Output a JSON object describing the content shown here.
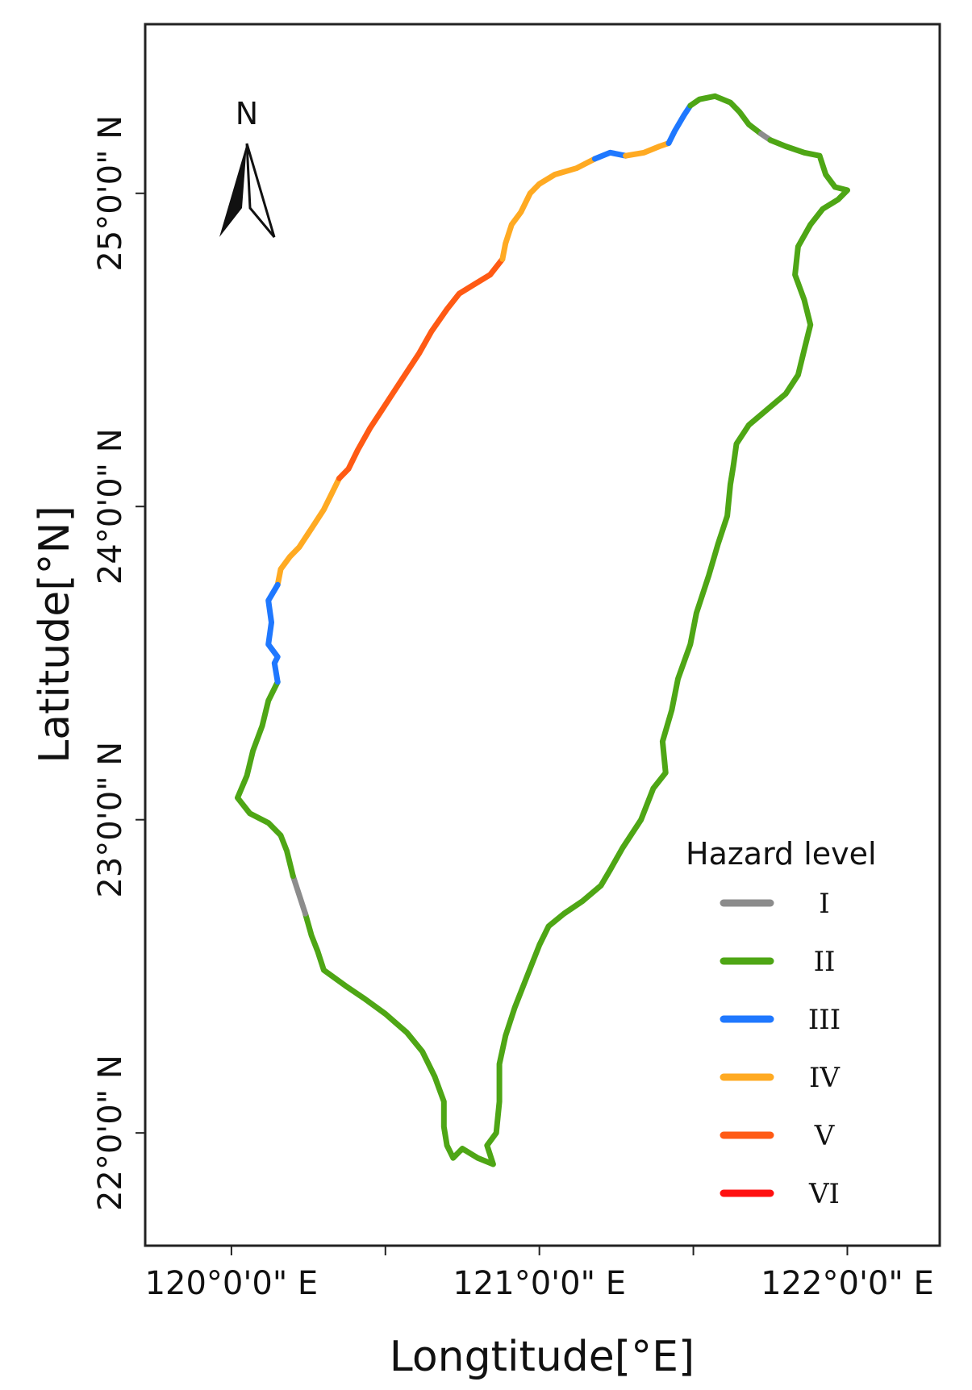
{
  "map": {
    "x_axis": {
      "title": "Longtitude[°E]",
      "ticks": [
        {
          "value": 120.0,
          "label": "120°0'0\" E"
        },
        {
          "value": 120.5,
          "label": ""
        },
        {
          "value": 121.0,
          "label": "121°0'0\" E"
        },
        {
          "value": 121.5,
          "label": ""
        },
        {
          "value": 122.0,
          "label": "122°0'0\" E"
        }
      ],
      "range": [
        119.72,
        122.3
      ]
    },
    "y_axis": {
      "title": "Latitude[°N]",
      "ticks": [
        {
          "value": 22.0,
          "label": "22°0'0\" N"
        },
        {
          "value": 23.0,
          "label": "23°0'0\" N"
        },
        {
          "value": 24.0,
          "label": "24°0'0\" N"
        },
        {
          "value": 25.0,
          "label": "25°0'0\" N"
        }
      ],
      "range": [
        21.64,
        25.54
      ]
    },
    "north_arrow": {
      "label": "N"
    },
    "legend": {
      "title": "Hazard level",
      "items": [
        {
          "label": "I",
          "color": "#8c8c8c"
        },
        {
          "label": "II",
          "color": "#4ea615"
        },
        {
          "label": "III",
          "color": "#1f78ff"
        },
        {
          "label": "IV",
          "color": "#ffaa22"
        },
        {
          "label": "V",
          "color": "#ff5a14"
        },
        {
          "label": "VI",
          "color": "#ff1010"
        }
      ]
    },
    "coast_segments": [
      {
        "level": "IV",
        "points": [
          [
            120.15,
            23.75
          ],
          [
            120.16,
            23.8
          ],
          [
            120.19,
            23.84
          ],
          [
            120.22,
            23.87
          ],
          [
            120.26,
            23.93
          ],
          [
            120.3,
            23.99
          ],
          [
            120.33,
            24.05
          ],
          [
            120.35,
            24.09
          ]
        ]
      },
      {
        "level": "V",
        "points": [
          [
            120.35,
            24.09
          ],
          [
            120.38,
            24.12
          ],
          [
            120.41,
            24.18
          ],
          [
            120.45,
            24.25
          ],
          [
            120.49,
            24.31
          ],
          [
            120.53,
            24.37
          ],
          [
            120.57,
            24.43
          ],
          [
            120.61,
            24.49
          ],
          [
            120.65,
            24.56
          ],
          [
            120.7,
            24.63
          ],
          [
            120.74,
            24.68
          ],
          [
            120.79,
            24.71
          ],
          [
            120.84,
            24.74
          ],
          [
            120.88,
            24.79
          ]
        ]
      },
      {
        "level": "IV",
        "points": [
          [
            120.88,
            24.79
          ],
          [
            120.89,
            24.84
          ],
          [
            120.91,
            24.9
          ],
          [
            120.94,
            24.94
          ],
          [
            120.97,
            25.0
          ],
          [
            121.0,
            25.03
          ],
          [
            121.05,
            25.06
          ],
          [
            121.12,
            25.08
          ],
          [
            121.18,
            25.11
          ]
        ]
      },
      {
        "level": "III",
        "points": [
          [
            121.18,
            25.11
          ],
          [
            121.23,
            25.13
          ],
          [
            121.28,
            25.12
          ]
        ]
      },
      {
        "level": "IV",
        "points": [
          [
            121.28,
            25.12
          ],
          [
            121.34,
            25.13
          ],
          [
            121.39,
            25.15
          ],
          [
            121.42,
            25.16
          ]
        ]
      },
      {
        "level": "III",
        "points": [
          [
            121.42,
            25.16
          ],
          [
            121.44,
            25.2
          ],
          [
            121.47,
            25.25
          ],
          [
            121.49,
            25.28
          ]
        ]
      },
      {
        "level": "II",
        "points": [
          [
            121.49,
            25.28
          ],
          [
            121.52,
            25.3
          ],
          [
            121.57,
            25.31
          ],
          [
            121.62,
            25.29
          ],
          [
            121.65,
            25.26
          ],
          [
            121.68,
            25.22
          ],
          [
            121.72,
            25.19
          ]
        ]
      },
      {
        "level": "I",
        "points": [
          [
            121.72,
            25.19
          ],
          [
            121.75,
            25.17
          ]
        ]
      },
      {
        "level": "II",
        "points": [
          [
            121.75,
            25.17
          ],
          [
            121.8,
            25.15
          ],
          [
            121.86,
            25.13
          ],
          [
            121.91,
            25.12
          ],
          [
            121.93,
            25.06
          ],
          [
            121.96,
            25.02
          ],
          [
            122.0,
            25.01
          ],
          [
            121.97,
            24.98
          ],
          [
            121.92,
            24.95
          ],
          [
            121.88,
            24.9
          ],
          [
            121.84,
            24.83
          ],
          [
            121.83,
            24.74
          ],
          [
            121.86,
            24.66
          ],
          [
            121.88,
            24.58
          ],
          [
            121.86,
            24.5
          ],
          [
            121.84,
            24.42
          ],
          [
            121.8,
            24.36
          ],
          [
            121.74,
            24.31
          ],
          [
            121.68,
            24.26
          ],
          [
            121.64,
            24.2
          ],
          [
            121.63,
            24.13
          ],
          [
            121.62,
            24.07
          ],
          [
            121.61,
            23.97
          ],
          [
            121.58,
            23.88
          ],
          [
            121.55,
            23.78
          ],
          [
            121.51,
            23.66
          ],
          [
            121.49,
            23.56
          ],
          [
            121.45,
            23.45
          ],
          [
            121.43,
            23.35
          ],
          [
            121.4,
            23.25
          ],
          [
            121.41,
            23.15
          ],
          [
            121.37,
            23.1
          ],
          [
            121.33,
            23.0
          ],
          [
            121.27,
            22.91
          ],
          [
            121.23,
            22.84
          ],
          [
            121.2,
            22.79
          ],
          [
            121.14,
            22.74
          ],
          [
            121.08,
            22.7
          ],
          [
            121.03,
            22.66
          ],
          [
            121.0,
            22.6
          ],
          [
            120.96,
            22.5
          ],
          [
            120.92,
            22.4
          ],
          [
            120.89,
            22.31
          ],
          [
            120.87,
            22.22
          ],
          [
            120.87,
            22.1
          ],
          [
            120.86,
            22.0
          ],
          [
            120.83,
            21.96
          ],
          [
            120.85,
            21.9
          ],
          [
            120.8,
            21.92
          ],
          [
            120.75,
            21.95
          ],
          [
            120.72,
            21.92
          ],
          [
            120.7,
            21.96
          ],
          [
            120.69,
            22.02
          ],
          [
            120.69,
            22.1
          ],
          [
            120.66,
            22.18
          ],
          [
            120.62,
            22.26
          ],
          [
            120.57,
            22.32
          ],
          [
            120.5,
            22.38
          ],
          [
            120.43,
            22.43
          ],
          [
            120.37,
            22.47
          ],
          [
            120.3,
            22.52
          ],
          [
            120.28,
            22.58
          ],
          [
            120.26,
            22.63
          ],
          [
            120.24,
            22.7
          ]
        ]
      },
      {
        "level": "I",
        "points": [
          [
            120.24,
            22.7
          ],
          [
            120.22,
            22.76
          ],
          [
            120.2,
            22.82
          ]
        ]
      },
      {
        "level": "II",
        "points": [
          [
            120.2,
            22.82
          ],
          [
            120.18,
            22.9
          ],
          [
            120.16,
            22.95
          ],
          [
            120.12,
            22.99
          ],
          [
            120.06,
            23.02
          ],
          [
            120.02,
            23.07
          ],
          [
            120.05,
            23.14
          ],
          [
            120.07,
            23.22
          ],
          [
            120.1,
            23.3
          ],
          [
            120.12,
            23.38
          ],
          [
            120.15,
            23.44
          ]
        ]
      },
      {
        "level": "III",
        "points": [
          [
            120.15,
            23.44
          ],
          [
            120.14,
            23.5
          ],
          [
            120.15,
            23.52
          ],
          [
            120.12,
            23.56
          ],
          [
            120.13,
            23.63
          ],
          [
            120.12,
            23.7
          ],
          [
            120.15,
            23.75
          ]
        ]
      }
    ]
  }
}
